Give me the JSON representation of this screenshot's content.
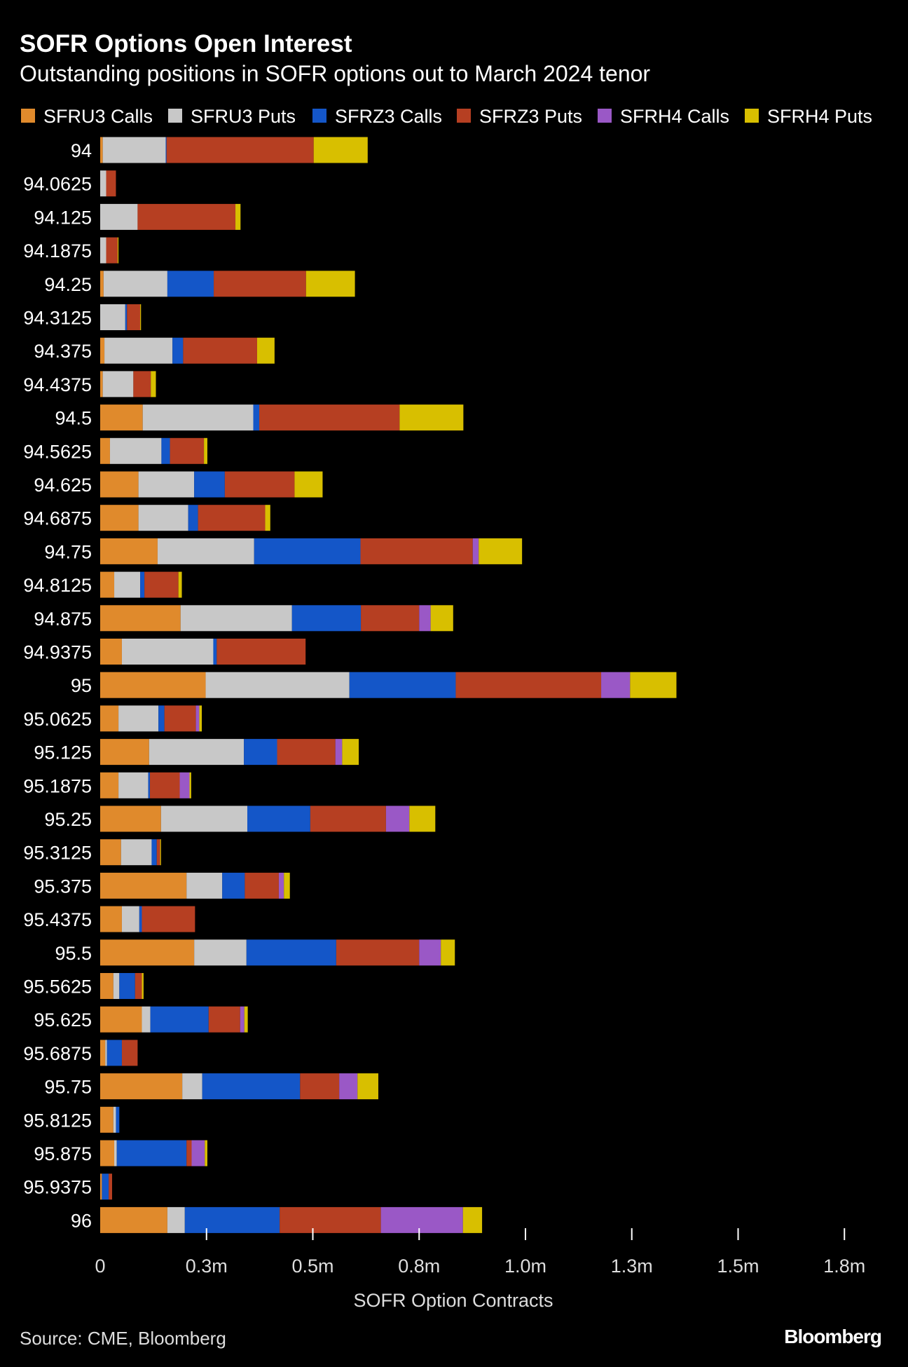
{
  "chart_data": {
    "type": "bar",
    "orientation": "horizontal",
    "stacked": true,
    "title": "SOFR Options Open Interest",
    "subtitle": "Outstanding positions in SOFR options out to March 2024 tenor",
    "xlabel": "SOFR Option Contracts",
    "ylabel": "",
    "xlim": [
      0,
      1.8
    ],
    "x_ticks": [
      0,
      0.25,
      0.5,
      0.75,
      1.0,
      1.25,
      1.5,
      1.75
    ],
    "x_tick_labels": [
      "0",
      "0.3m",
      "0.5m",
      "0.8m",
      "1.0m",
      "1.3m",
      "1.5m",
      "1.8m"
    ],
    "units": "million contracts",
    "legend_position": "top",
    "source": "Source: CME, Bloomberg",
    "brand": "Bloomberg",
    "categories": [
      "94",
      "94.0625",
      "94.125",
      "94.1875",
      "94.25",
      "94.3125",
      "94.375",
      "94.4375",
      "94.5",
      "94.5625",
      "94.625",
      "94.6875",
      "94.75",
      "94.8125",
      "94.875",
      "94.9375",
      "95",
      "95.0625",
      "95.125",
      "95.1875",
      "95.25",
      "95.3125",
      "95.375",
      "95.4375",
      "95.5",
      "95.5625",
      "95.625",
      "95.6875",
      "95.75",
      "95.8125",
      "95.875",
      "95.9375",
      "96"
    ],
    "series": [
      {
        "name": "SFRU3 Calls",
        "color": "#e08a2c",
        "values": [
          0.006,
          0,
          0,
          0,
          0.008,
          0,
          0.01,
          0.006,
          0.1,
          0.023,
          0.09,
          0.09,
          0.135,
          0.033,
          0.189,
          0.051,
          0.248,
          0.043,
          0.115,
          0.043,
          0.143,
          0.049,
          0.203,
          0.051,
          0.221,
          0.031,
          0.098,
          0.012,
          0.193,
          0.031,
          0.033,
          0.004,
          0.158
        ]
      },
      {
        "name": "SFRU3 Puts",
        "color": "#c8c8c8",
        "values": [
          0.148,
          0.014,
          0.088,
          0.014,
          0.15,
          0.059,
          0.16,
          0.072,
          0.26,
          0.121,
          0.131,
          0.117,
          0.227,
          0.061,
          0.262,
          0.215,
          0.338,
          0.094,
          0.223,
          0.07,
          0.203,
          0.072,
          0.084,
          0.041,
          0.123,
          0.014,
          0.02,
          0.004,
          0.047,
          0.006,
          0.006,
          0,
          0.041
        ]
      },
      {
        "name": "SFRZ3 Calls",
        "color": "#1456c8",
        "values": [
          0.002,
          0,
          0,
          0,
          0.109,
          0.004,
          0.025,
          0,
          0.014,
          0.02,
          0.072,
          0.023,
          0.25,
          0.01,
          0.162,
          0.008,
          0.25,
          0.014,
          0.078,
          0.004,
          0.148,
          0.012,
          0.053,
          0.006,
          0.211,
          0.037,
          0.137,
          0.035,
          0.23,
          0.008,
          0.164,
          0.016,
          0.223
        ]
      },
      {
        "name": "SFRZ3 Puts",
        "color": "#b63f22",
        "values": [
          0.346,
          0.023,
          0.23,
          0.027,
          0.217,
          0.031,
          0.174,
          0.041,
          0.33,
          0.08,
          0.164,
          0.158,
          0.264,
          0.08,
          0.137,
          0.209,
          0.342,
          0.074,
          0.137,
          0.07,
          0.178,
          0.008,
          0.08,
          0.125,
          0.195,
          0.016,
          0.074,
          0.037,
          0.092,
          0,
          0.012,
          0.008,
          0.238
        ]
      },
      {
        "name": "SFRH4 Calls",
        "color": "#9a58c6",
        "values": [
          0,
          0,
          0,
          0,
          0,
          0,
          0,
          0,
          0,
          0,
          0,
          0,
          0.014,
          0,
          0.027,
          0,
          0.068,
          0.008,
          0.016,
          0.023,
          0.055,
          0,
          0.012,
          0,
          0.051,
          0,
          0.01,
          0,
          0.043,
          0,
          0.031,
          0,
          0.193
        ]
      },
      {
        "name": "SFRH4 Puts",
        "color": "#d8bf00",
        "values": [
          0.127,
          0,
          0.012,
          0.002,
          0.115,
          0.002,
          0.041,
          0.012,
          0.15,
          0.008,
          0.066,
          0.012,
          0.102,
          0.008,
          0.053,
          0,
          0.109,
          0.006,
          0.039,
          0.004,
          0.061,
          0.002,
          0.014,
          0,
          0.033,
          0.004,
          0.008,
          0,
          0.049,
          0,
          0.006,
          0,
          0.045
        ]
      }
    ]
  }
}
